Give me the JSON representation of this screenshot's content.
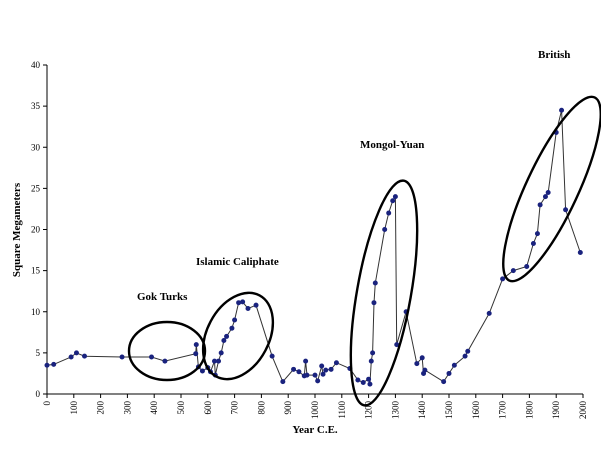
{
  "chart_data": {
    "type": "line",
    "xlabel": "Year C.E.",
    "ylabel": "Square Megameters",
    "xlim": [
      0,
      2000
    ],
    "ylim": [
      0,
      40
    ],
    "x_ticks": [
      0,
      100,
      200,
      300,
      400,
      500,
      600,
      700,
      800,
      900,
      1000,
      1100,
      1200,
      1300,
      1400,
      1500,
      1600,
      1700,
      1800,
      1900,
      2000
    ],
    "y_ticks": [
      0,
      5,
      10,
      15,
      20,
      25,
      30,
      35,
      40
    ],
    "grid": false,
    "series_color": "#1a237e",
    "points": [
      [
        0,
        3.5
      ],
      [
        25,
        3.6
      ],
      [
        90,
        4.5
      ],
      [
        110,
        5.0
      ],
      [
        140,
        4.6
      ],
      [
        280,
        4.5
      ],
      [
        390,
        4.5
      ],
      [
        440,
        4.0
      ],
      [
        555,
        4.9
      ],
      [
        557,
        6.0
      ],
      [
        565,
        3.3
      ],
      [
        580,
        2.8
      ],
      [
        600,
        3.2
      ],
      [
        610,
        2.7
      ],
      [
        625,
        4.0
      ],
      [
        628,
        2.3
      ],
      [
        640,
        4.0
      ],
      [
        650,
        5.0
      ],
      [
        660,
        6.5
      ],
      [
        670,
        7.0
      ],
      [
        690,
        8.0
      ],
      [
        700,
        9.0
      ],
      [
        715,
        11.1
      ],
      [
        730,
        11.2
      ],
      [
        750,
        10.4
      ],
      [
        780,
        10.8
      ],
      [
        840,
        4.6
      ],
      [
        880,
        1.5
      ],
      [
        920,
        3.0
      ],
      [
        940,
        2.7
      ],
      [
        960,
        2.2
      ],
      [
        965,
        4.0
      ],
      [
        970,
        2.3
      ],
      [
        1000,
        2.3
      ],
      [
        1010,
        1.6
      ],
      [
        1025,
        3.4
      ],
      [
        1030,
        2.4
      ],
      [
        1040,
        2.9
      ],
      [
        1060,
        3.0
      ],
      [
        1080,
        3.8
      ],
      [
        1130,
        3.1
      ],
      [
        1160,
        1.7
      ],
      [
        1180,
        1.4
      ],
      [
        1200,
        1.8
      ],
      [
        1205,
        1.2
      ],
      [
        1210,
        4.0
      ],
      [
        1215,
        5.0
      ],
      [
        1220,
        11.1
      ],
      [
        1225,
        13.5
      ],
      [
        1260,
        20.0
      ],
      [
        1275,
        22.0
      ],
      [
        1290,
        23.5
      ],
      [
        1300,
        24.0
      ],
      [
        1305,
        6.0
      ],
      [
        1340,
        10.0
      ],
      [
        1380,
        3.7
      ],
      [
        1400,
        4.4
      ],
      [
        1405,
        2.5
      ],
      [
        1410,
        2.9
      ],
      [
        1480,
        1.5
      ],
      [
        1500,
        2.5
      ],
      [
        1520,
        3.5
      ],
      [
        1560,
        4.6
      ],
      [
        1570,
        5.2
      ],
      [
        1650,
        9.8
      ],
      [
        1700,
        14.0
      ],
      [
        1740,
        15.0
      ],
      [
        1790,
        15.5
      ],
      [
        1815,
        18.3
      ],
      [
        1830,
        19.5
      ],
      [
        1840,
        23.0
      ],
      [
        1860,
        24.0
      ],
      [
        1870,
        24.5
      ],
      [
        1900,
        31.8
      ],
      [
        1920,
        34.5
      ],
      [
        1935,
        22.4
      ],
      [
        1990,
        17.2
      ]
    ],
    "annotations": [
      {
        "text": "Gok Turks"
      },
      {
        "text": "Islamic Caliphate"
      },
      {
        "text": "Mongol-Yuan"
      },
      {
        "text": "British"
      }
    ]
  }
}
